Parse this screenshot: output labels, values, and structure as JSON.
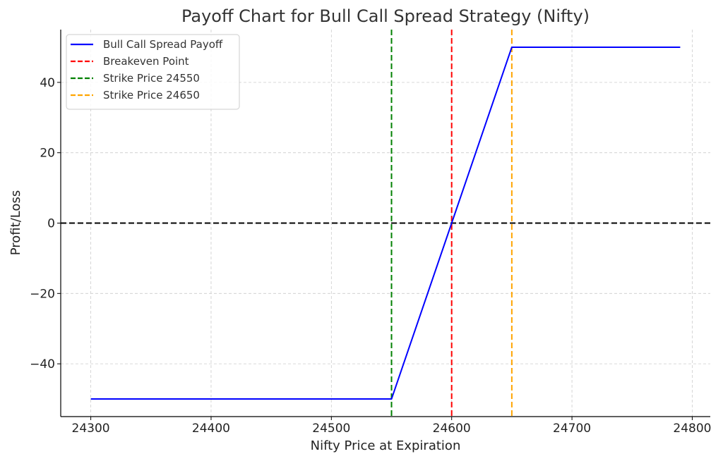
{
  "chart_data": {
    "type": "line",
    "title": "Payoff Chart for Bull Call Spread Strategy (Nifty)",
    "xlabel": "Nifty Price at Expiration",
    "ylabel": "Profit/Loss",
    "xlim": [
      24275,
      24815
    ],
    "ylim": [
      -55,
      55
    ],
    "xticks": [
      24300,
      24400,
      24500,
      24600,
      24700,
      24800
    ],
    "xtick_labels": [
      "24300",
      "24400",
      "24500",
      "24600",
      "24700",
      "24800"
    ],
    "yticks": [
      -40,
      -20,
      0,
      20,
      40
    ],
    "ytick_labels": [
      "−40",
      "−20",
      "0",
      "20",
      "40"
    ],
    "grid": true,
    "legend_position": "top-left",
    "series": [
      {
        "name": "Bull Call Spread Payoff",
        "color": "#0000ff",
        "style": "solid",
        "x": [
          24300,
          24550,
          24650,
          24790
        ],
        "y": [
          -50,
          -50,
          50,
          50
        ]
      }
    ],
    "vertical_lines": [
      {
        "name": "Breakeven Point",
        "x": 24600,
        "color": "#ff0000",
        "style": "dashed"
      },
      {
        "name": "Strike Price 24550",
        "x": 24550,
        "color": "#008000",
        "style": "dashed"
      },
      {
        "name": "Strike Price 24650",
        "x": 24650,
        "color": "#ffa500",
        "style": "dashed"
      }
    ],
    "horizontal_lines": [
      {
        "y": 0,
        "color": "#000000",
        "style": "dashed"
      }
    ],
    "legend": [
      {
        "label": "Bull Call Spread Payoff",
        "color": "#0000ff",
        "style": "solid"
      },
      {
        "label": "Breakeven Point",
        "color": "#ff0000",
        "style": "dashed"
      },
      {
        "label": "Strike Price 24550",
        "color": "#008000",
        "style": "dashed"
      },
      {
        "label": "Strike Price 24650",
        "color": "#ffa500",
        "style": "dashed"
      }
    ]
  }
}
